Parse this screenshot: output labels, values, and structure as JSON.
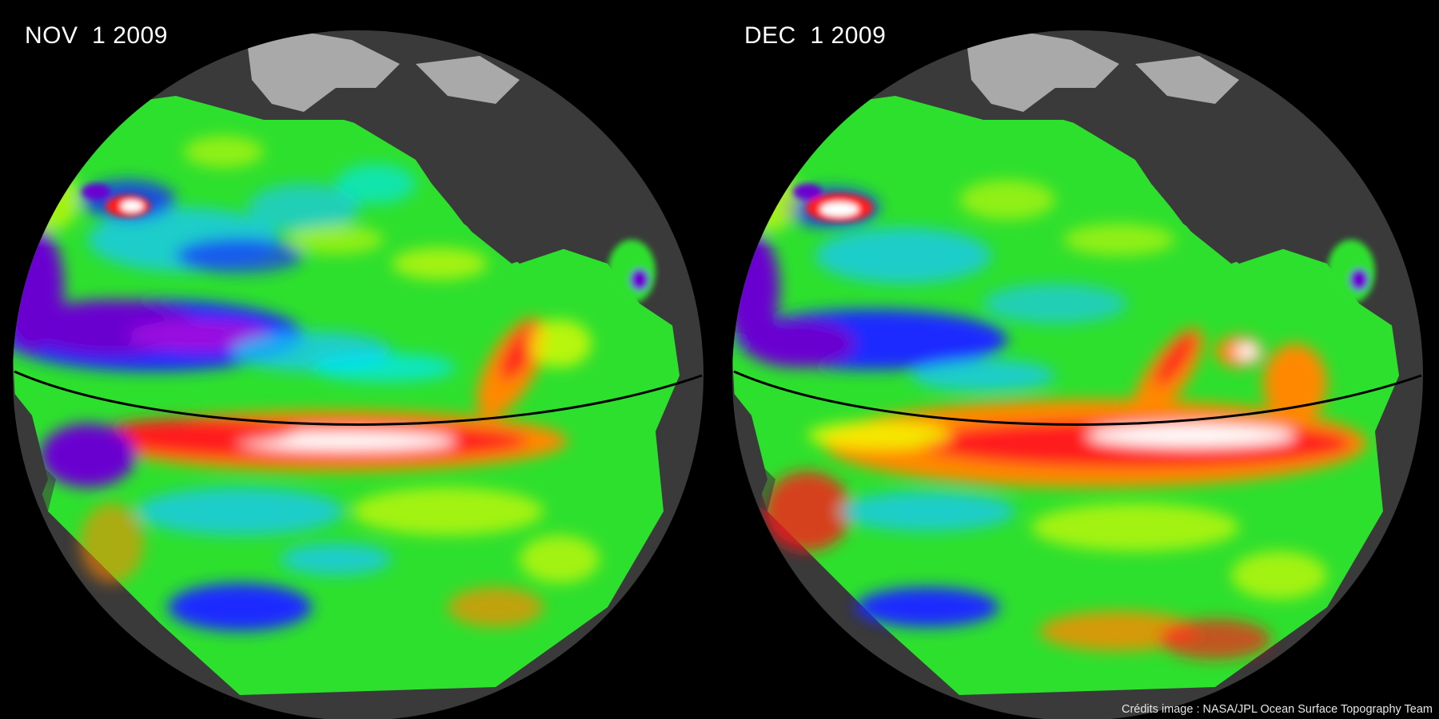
{
  "panels": [
    {
      "date_label": "NOV  1 2009"
    },
    {
      "date_label": "DEC  1 2009"
    }
  ],
  "credits": "Crédits image : NASA/JPL Ocean Surface Topography Team",
  "colors": {
    "background": "#000000",
    "land": "#3a3a3a",
    "ice": "#a9a9a9",
    "equator_line": "#000000",
    "sea_level_scale": [
      "#6a00d0",
      "#1a2cff",
      "#00e8ff",
      "#2cff2c",
      "#f2ff00",
      "#ff8800",
      "#ff1a1a",
      "#ffffff"
    ]
  }
}
